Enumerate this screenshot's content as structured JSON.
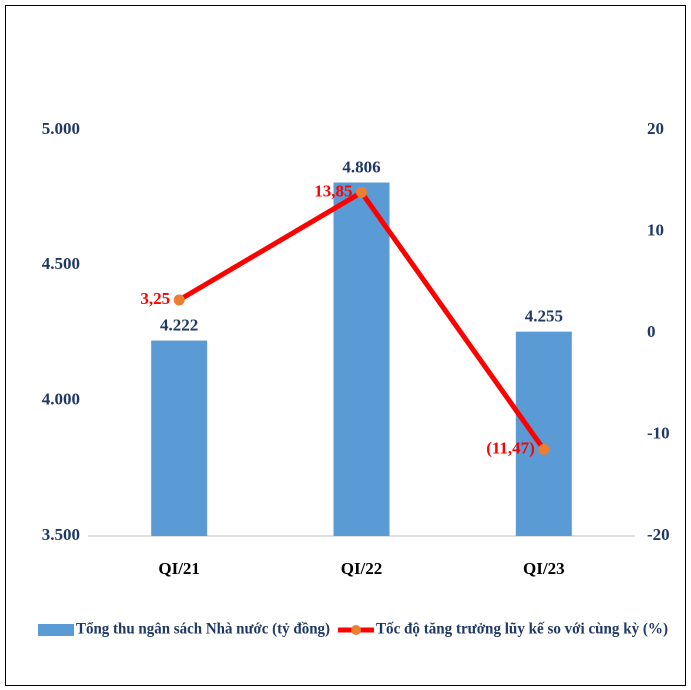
{
  "chart_data": {
    "type": "bar",
    "categories": [
      "QI/21",
      "QI/22",
      "QI/23"
    ],
    "series": [
      {
        "name": "Tổng thu ngân sách Nhà nước (tỷ đồng)",
        "type": "bar",
        "color": "#5b9bd5",
        "label_color": "#1f3864",
        "values": [
          4222,
          4806,
          4255
        ],
        "value_labels": [
          "4.222",
          "4.806",
          "4.255"
        ]
      },
      {
        "name": "Tốc độ tăng trưởng lũy kế so với cùng kỳ (%)",
        "type": "line",
        "axis": "y2",
        "color": "#ff0000",
        "marker_color": "#ed7d31",
        "label_color": "#ff0000",
        "values": [
          3.25,
          13.85,
          -11.47
        ],
        "value_labels": [
          "3,25",
          "13,85",
          "(11,47)"
        ]
      }
    ],
    "ylim": [
      3500,
      5000
    ],
    "yticks": [
      {
        "value": 3500,
        "label": "3.500"
      },
      {
        "value": 4000,
        "label": "4.000"
      },
      {
        "value": 4500,
        "label": "4.500"
      },
      {
        "value": 5000,
        "label": "5.000"
      }
    ],
    "y2lim": [
      -20,
      20
    ],
    "y2ticks": [
      -20,
      -10,
      0,
      10,
      20
    ],
    "grid": false,
    "legend": "bottom"
  }
}
